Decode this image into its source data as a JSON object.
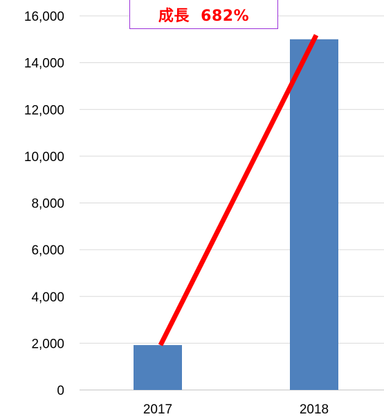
{
  "chart_data": {
    "type": "bar",
    "categories": [
      "2017",
      "2018"
    ],
    "values": [
      1920,
      15000
    ],
    "ylim": [
      0,
      16000
    ],
    "yticks": [
      0,
      2000,
      4000,
      6000,
      8000,
      10000,
      12000,
      14000,
      16000
    ],
    "ytick_labels": [
      "0",
      "2,000",
      "4,000",
      "6,000",
      "8,000",
      "10,000",
      "12,000",
      "14,000",
      "16,000"
    ],
    "grid": true,
    "bar_color": "#4f81bd",
    "grid_color": "#d9d9d9",
    "trend_line": {
      "from": [
        "2017",
        1920
      ],
      "to": [
        "2018",
        15000
      ],
      "color": "#ff0000"
    },
    "annotation": {
      "text": "成長  682%",
      "color": "#ff0000",
      "border_color": "#9b30d9"
    }
  }
}
